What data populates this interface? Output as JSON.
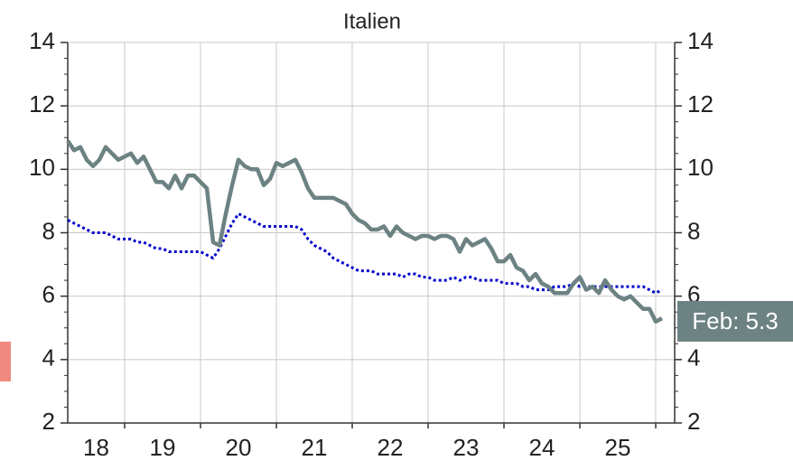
{
  "chart_data": {
    "type": "line",
    "title": "Italien",
    "xlim": [
      2018.25,
      2026.25
    ],
    "xticks": [
      {
        "value": 2018,
        "label": "18"
      },
      {
        "value": 2019,
        "label": "19"
      },
      {
        "value": 2020,
        "label": "20"
      },
      {
        "value": 2021,
        "label": "21"
      },
      {
        "value": 2022,
        "label": "22"
      },
      {
        "value": 2023,
        "label": "23"
      },
      {
        "value": 2024,
        "label": "24"
      },
      {
        "value": 2025,
        "label": "25"
      },
      {
        "value": 2026,
        "label": ""
      }
    ],
    "ylim": [
      2,
      14
    ],
    "yticks": [
      2,
      4,
      6,
      8,
      10,
      12,
      14
    ],
    "yminorticks": [
      2.5,
      3,
      3.5,
      4.5,
      5,
      5.5,
      6.5,
      7,
      7.5,
      8.5,
      9,
      9.5,
      10.5,
      11,
      11.5,
      12.5,
      13,
      13.5
    ],
    "y2lim": [
      2,
      14
    ],
    "y2ticks": [
      2,
      4,
      6,
      8,
      10,
      12,
      14
    ],
    "grid": true,
    "x": [
      2018.25,
      2018.333,
      2018.417,
      2018.5,
      2018.583,
      2018.667,
      2018.75,
      2018.833,
      2018.917,
      2019,
      2019.083,
      2019.167,
      2019.25,
      2019.333,
      2019.417,
      2019.5,
      2019.583,
      2019.667,
      2019.75,
      2019.833,
      2019.917,
      2020,
      2020.083,
      2020.167,
      2020.25,
      2020.333,
      2020.417,
      2020.5,
      2020.583,
      2020.667,
      2020.75,
      2020.833,
      2020.917,
      2021,
      2021.083,
      2021.167,
      2021.25,
      2021.333,
      2021.417,
      2021.5,
      2021.583,
      2021.667,
      2021.75,
      2021.833,
      2021.917,
      2022,
      2022.083,
      2022.167,
      2022.25,
      2022.333,
      2022.417,
      2022.5,
      2022.583,
      2022.667,
      2022.75,
      2022.833,
      2022.917,
      2023,
      2023.083,
      2023.167,
      2023.25,
      2023.333,
      2023.417,
      2023.5,
      2023.583,
      2023.667,
      2023.75,
      2023.833,
      2023.917,
      2024,
      2024.083,
      2024.167,
      2024.25,
      2024.333,
      2024.417,
      2024.5,
      2024.583,
      2024.667,
      2024.75,
      2024.833,
      2024.917,
      2025,
      2025.083,
      2025.167,
      2025.25,
      2025.333,
      2025.417,
      2025.5,
      2025.583,
      2025.667,
      2025.75,
      2025.833,
      2025.917,
      2026,
      2026.083
    ],
    "series": [
      {
        "color": "#6c8283",
        "style": "solid",
        "width": 4.5,
        "values": [
          10.9,
          10.6,
          10.7,
          10.3,
          10.1,
          10.3,
          10.7,
          10.5,
          10.3,
          10.4,
          10.5,
          10.2,
          10.4,
          10.0,
          9.6,
          9.6,
          9.4,
          9.8,
          9.4,
          9.8,
          9.8,
          9.6,
          9.4,
          7.7,
          7.6,
          8.6,
          9.5,
          10.3,
          10.1,
          10.0,
          10.0,
          9.5,
          9.7,
          10.2,
          10.1,
          10.2,
          10.3,
          9.9,
          9.4,
          9.1,
          9.1,
          9.1,
          9.1,
          9.0,
          8.9,
          8.6,
          8.4,
          8.3,
          8.1,
          8.1,
          8.2,
          7.9,
          8.2,
          8.0,
          7.9,
          7.8,
          7.9,
          7.9,
          7.8,
          7.9,
          7.9,
          7.8,
          7.4,
          7.8,
          7.6,
          7.7,
          7.8,
          7.5,
          7.1,
          7.1,
          7.3,
          6.9,
          6.8,
          6.5,
          6.7,
          6.4,
          6.3,
          6.1,
          6.1,
          6.1,
          6.4,
          6.6,
          6.2,
          6.3,
          6.1,
          6.5,
          6.2,
          6.0,
          5.9,
          6.0,
          5.8,
          5.6,
          5.6,
          5.2,
          5.3
        ]
      },
      {
        "color": "#0000cc",
        "style": "dotted",
        "width": 3,
        "values": [
          8.4,
          8.3,
          8.2,
          8.1,
          8.0,
          8.0,
          8.0,
          7.9,
          7.8,
          7.8,
          7.8,
          7.7,
          7.7,
          7.6,
          7.5,
          7.5,
          7.4,
          7.4,
          7.4,
          7.4,
          7.4,
          7.4,
          7.3,
          7.2,
          7.5,
          7.9,
          8.3,
          8.6,
          8.5,
          8.4,
          8.3,
          8.2,
          8.2,
          8.2,
          8.2,
          8.2,
          8.2,
          8.1,
          7.8,
          7.6,
          7.5,
          7.4,
          7.2,
          7.1,
          7.0,
          6.9,
          6.8,
          6.8,
          6.8,
          6.7,
          6.7,
          6.7,
          6.7,
          6.6,
          6.7,
          6.7,
          6.6,
          6.6,
          6.5,
          6.5,
          6.5,
          6.6,
          6.5,
          6.6,
          6.6,
          6.5,
          6.5,
          6.5,
          6.5,
          6.4,
          6.4,
          6.4,
          6.3,
          6.3,
          6.2,
          6.2,
          6.2,
          6.3,
          6.3,
          6.3,
          6.4,
          6.3,
          6.3,
          6.3,
          6.3,
          6.3,
          6.3,
          6.3,
          6.3,
          6.3,
          6.3,
          6.3,
          6.2,
          6.1,
          6.2
        ]
      }
    ],
    "annotations": [
      {
        "text": "Feb: 5.3",
        "color": "#6c8283"
      }
    ]
  }
}
